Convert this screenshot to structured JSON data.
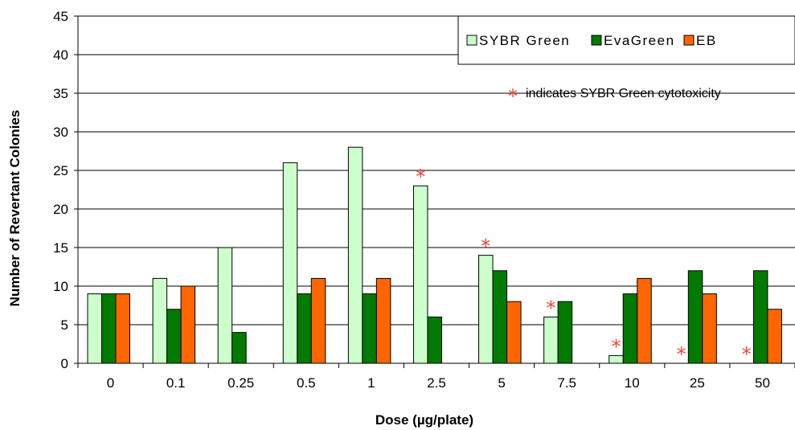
{
  "chart_data": {
    "type": "bar",
    "xlabel": "Dose (µg/plate)",
    "ylabel": "Number of Revertant Colonies",
    "ylim": [
      0,
      45
    ],
    "yticks": [
      0,
      5,
      10,
      15,
      20,
      25,
      30,
      35,
      40,
      45
    ],
    "grid": "horizontal",
    "legend_position": "top-right",
    "categories": [
      "0",
      "0.1",
      "0.25",
      "0.5",
      "1",
      "2.5",
      "5",
      "7.5",
      "10",
      "25",
      "50"
    ],
    "series": [
      {
        "name": "SYBR Green",
        "color": "#ccffcc",
        "values": [
          9,
          11,
          15,
          26,
          28,
          23,
          14,
          6,
          1,
          0,
          0
        ]
      },
      {
        "name": "EvaGreen",
        "color": "#007a00",
        "values": [
          9,
          7,
          4,
          9,
          9,
          6,
          12,
          8,
          9,
          12,
          12
        ]
      },
      {
        "name": "EB",
        "color": "#ff6600",
        "values": [
          9,
          10,
          0,
          11,
          11,
          0,
          8,
          0,
          11,
          9,
          7
        ]
      }
    ],
    "cytotoxicity_marked_categories": [
      "2.5",
      "5",
      "7.5",
      "10",
      "25",
      "50"
    ],
    "annotation": {
      "symbol": "*",
      "text": "indicates SYBR Green cytotoxicity",
      "symbol_color": "#e8473a"
    }
  }
}
